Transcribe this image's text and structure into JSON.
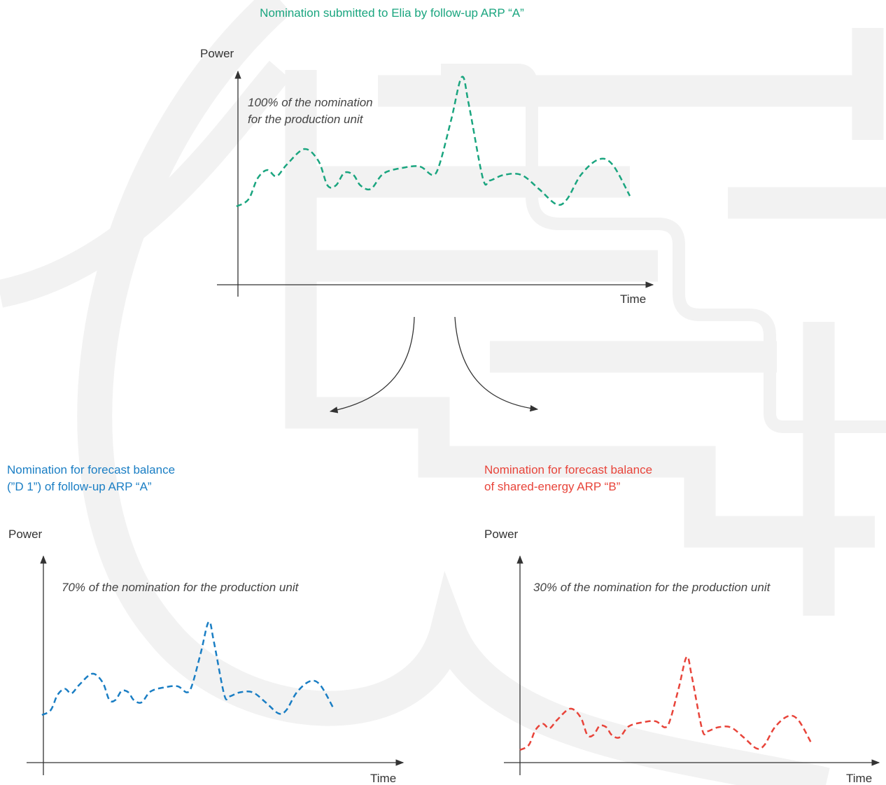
{
  "top": {
    "title": "Nomination submitted to Elia by follow-up ARP “A”",
    "y_label": "Power",
    "note": [
      "100% of the nomination",
      "for the production unit"
    ],
    "x_label": "Time"
  },
  "left": {
    "title": [
      "Nomination for forecast balance",
      "(”D 1”) of follow-up ARP “A”"
    ],
    "y_label": "Power",
    "note": [
      "70% of the nomination for the production unit"
    ],
    "x_label": "Time"
  },
  "right": {
    "title": [
      "Nomination for forecast balance",
      "of shared-energy ARP “B”"
    ],
    "y_label": "Power",
    "note": [
      "30% of the nomination for the production unit"
    ],
    "x_label": "Time"
  }
}
